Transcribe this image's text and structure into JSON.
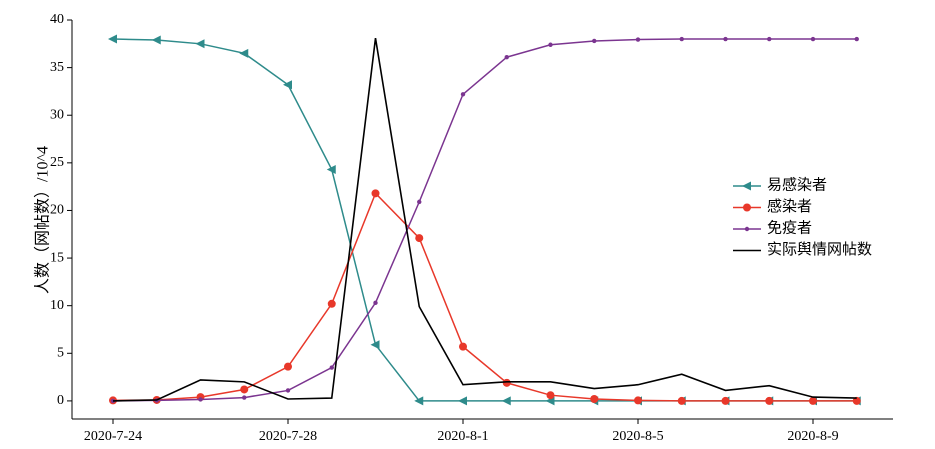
{
  "chart_data": {
    "type": "line",
    "y_label": "人数（网帖数）/10^4",
    "categories": [
      "2020-7-24",
      null,
      null,
      null,
      "2020-7-28",
      null,
      null,
      null,
      "2020-8-1",
      null,
      null,
      null,
      "2020-8-5",
      null,
      null,
      null,
      "2020-8-9",
      null
    ],
    "series": [
      {
        "name": "易感染者",
        "color": "#2e8b8b",
        "marker": "triangle-left",
        "values": [
          38.0,
          37.9,
          37.5,
          36.5,
          33.2,
          24.3,
          5.9,
          0,
          0,
          0,
          0,
          0,
          0,
          0,
          0,
          0,
          0,
          0
        ]
      },
      {
        "name": "感染者",
        "color": "#e8382a",
        "marker": "circle",
        "values": [
          0.05,
          0.1,
          0.4,
          1.2,
          3.6,
          10.2,
          21.8,
          17.1,
          5.7,
          1.9,
          0.6,
          0.2,
          0.05,
          0,
          0,
          0,
          0,
          0
        ]
      },
      {
        "name": "免疫者",
        "color": "#7b3590",
        "marker": "dot",
        "values": [
          0,
          0.05,
          0.15,
          0.35,
          1.1,
          3.5,
          10.3,
          20.9,
          32.2,
          36.1,
          37.4,
          37.8,
          37.95,
          38.0,
          38.0,
          38.0,
          38.0,
          38.0
        ]
      },
      {
        "name": "实际舆情网帖数",
        "color": "#000000",
        "marker": "none",
        "values": [
          0,
          0.1,
          2.2,
          2.0,
          0.2,
          0.3,
          38.1,
          9.9,
          1.7,
          2.0,
          2.0,
          1.3,
          1.7,
          2.8,
          1.1,
          1.6,
          0.4,
          0.3
        ]
      }
    ],
    "ylim": [
      -1.9,
      40
    ],
    "yticks": [
      0,
      5,
      10,
      15,
      20,
      25,
      30,
      35,
      40
    ],
    "grid": false,
    "legend": "right"
  }
}
